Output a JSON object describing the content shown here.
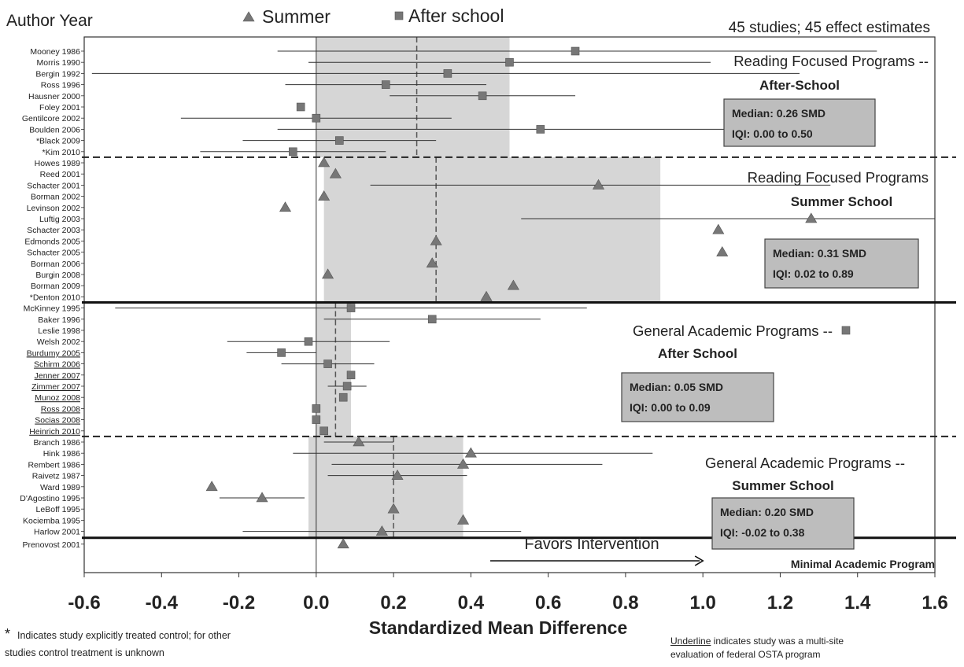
{
  "chart_data": {
    "type": "scatter",
    "subtype": "forest-plot",
    "header_left": "Author Year",
    "count_label": "45 studies; 45 effect estimates",
    "legend": [
      {
        "name": "Summer",
        "marker": "triangle"
      },
      {
        "name": "After school",
        "marker": "square"
      }
    ],
    "xlabel": "Standardized Mean Difference",
    "xlim": [
      -0.6,
      1.6
    ],
    "xticks": [
      "-0.6",
      "-0.4",
      "-0.2",
      "0.0",
      "0.2",
      "0.4",
      "0.6",
      "0.8",
      "1.0",
      "1.2",
      "1.4",
      "1.6"
    ],
    "xtick_values": [
      -0.6,
      -0.4,
      -0.2,
      0.0,
      0.2,
      0.4,
      0.6,
      0.8,
      1.0,
      1.2,
      1.4,
      1.6
    ],
    "arrow_label": "Favors Intervention",
    "arrow_range": [
      0.45,
      1.0
    ],
    "groups": [
      {
        "title_line1": "Reading Focused Programs --",
        "title_line2": "After-School",
        "median_label": "Median:  0.26 SMD",
        "iqi_label": "IQI: 0.00 to 0.50",
        "median": 0.26,
        "iqi": [
          0.0,
          0.5
        ],
        "divider": "dashed",
        "studies": [
          {
            "label": "Mooney 1986",
            "marker": "square",
            "es": 0.67,
            "ci": [
              -0.1,
              1.45
            ]
          },
          {
            "label": "Morris 1990",
            "marker": "square",
            "es": 0.5,
            "ci": [
              -0.02,
              1.02
            ]
          },
          {
            "label": "Bergin 1992",
            "marker": "square",
            "es": 0.34,
            "ci": [
              -0.58,
              1.25
            ]
          },
          {
            "label": "Ross 1996",
            "marker": "square",
            "es": 0.18,
            "ci": [
              -0.08,
              0.44
            ]
          },
          {
            "label": "Hausner 2000",
            "marker": "square",
            "es": 0.43,
            "ci": [
              0.19,
              0.67
            ]
          },
          {
            "label": "Foley 2001",
            "marker": "square",
            "es": -0.04,
            "ci": null
          },
          {
            "label": "Gentilcore 2002",
            "marker": "square",
            "es": 0.0,
            "ci": [
              -0.35,
              0.35
            ]
          },
          {
            "label": "Boulden 2006",
            "marker": "square",
            "es": 0.58,
            "ci": [
              -0.1,
              1.25
            ]
          },
          {
            "label": "*Black 2009",
            "marker": "square",
            "es": 0.06,
            "ci": [
              -0.19,
              0.31
            ]
          },
          {
            "label": "*Kim 2010",
            "marker": "square",
            "es": -0.06,
            "ci": [
              -0.3,
              0.18
            ]
          }
        ]
      },
      {
        "title_line1": "Reading Focused Programs",
        "title_line2": "Summer School",
        "median_label": "Median:  0.31 SMD",
        "iqi_label": "IQI: 0.02 to 0.89",
        "median": 0.31,
        "iqi": [
          0.02,
          0.89
        ],
        "divider": "solid",
        "studies": [
          {
            "label": "Howes 1989",
            "marker": "triangle",
            "es": 0.02,
            "ci": null
          },
          {
            "label": "Reed 2001",
            "marker": "triangle",
            "es": 0.05,
            "ci": null
          },
          {
            "label": "Schacter 2001",
            "marker": "triangle",
            "es": 0.73,
            "ci": [
              0.14,
              1.33
            ]
          },
          {
            "label": "Borman 2002",
            "marker": "triangle",
            "es": 0.02,
            "ci": null
          },
          {
            "label": "Levinson 2002",
            "marker": "triangle",
            "es": -0.08,
            "ci": null
          },
          {
            "label": "Luftig 2003",
            "marker": "triangle",
            "es": 1.28,
            "ci": [
              0.53,
              2.0
            ]
          },
          {
            "label": "Schacter 2003",
            "marker": "triangle",
            "es": 1.04,
            "ci": null
          },
          {
            "label": "Edmonds 2005",
            "marker": "triangle",
            "es": 0.31,
            "ci": null
          },
          {
            "label": "Schacter 2005",
            "marker": "triangle",
            "es": 1.05,
            "ci": null
          },
          {
            "label": "Borman 2006",
            "marker": "triangle",
            "es": 0.3,
            "ci": null
          },
          {
            "label": "Burgin 2008",
            "marker": "triangle",
            "es": 0.03,
            "ci": null
          },
          {
            "label": "Borman 2009",
            "marker": "triangle",
            "es": 0.51,
            "ci": null
          },
          {
            "label": "*Denton 2010",
            "marker": "triangle",
            "es": 0.44,
            "ci": null
          }
        ]
      },
      {
        "title_line1": "General Academic Programs --",
        "title_line2": "After School",
        "median_label": "Median: 0.05 SMD",
        "iqi_label": "IQI: 0.00 to 0.09",
        "median": 0.05,
        "iqi": [
          0.0,
          0.09
        ],
        "divider": "dashed",
        "studies": [
          {
            "label": "McKinney 1995",
            "marker": "square",
            "es": 0.09,
            "ci": [
              -0.52,
              0.7
            ]
          },
          {
            "label": "Baker 1996",
            "marker": "square",
            "es": 0.3,
            "ci": [
              0.02,
              0.58
            ]
          },
          {
            "label": "Leslie 1998",
            "marker": "square",
            "es": 1.37,
            "ci": null
          },
          {
            "label": "Welsh 2002",
            "marker": "square",
            "es": -0.02,
            "ci": [
              -0.23,
              0.19
            ]
          },
          {
            "label": "Burdumy 2005",
            "marker": "square",
            "es": -0.09,
            "ci": [
              -0.18,
              0.0
            ],
            "underline": true
          },
          {
            "label": "Schirm 2006",
            "marker": "square",
            "es": 0.03,
            "ci": [
              -0.09,
              0.15
            ],
            "underline": true
          },
          {
            "label": "Jenner 2007",
            "marker": "square",
            "es": 0.09,
            "ci": null,
            "underline": true
          },
          {
            "label": "Zimmer 2007",
            "marker": "square",
            "es": 0.08,
            "ci": [
              0.03,
              0.13
            ],
            "underline": true
          },
          {
            "label": "Munoz 2008",
            "marker": "square",
            "es": 0.07,
            "ci": null,
            "underline": true
          },
          {
            "label": "Ross 2008",
            "marker": "square",
            "es": 0.0,
            "ci": null,
            "underline": true
          },
          {
            "label": "Socias 2008",
            "marker": "square",
            "es": 0.0,
            "ci": null,
            "underline": true
          },
          {
            "label": "Heinrich 2010",
            "marker": "square",
            "es": 0.02,
            "ci": null,
            "underline": true
          }
        ]
      },
      {
        "title_line1": "General Academic Programs --",
        "title_line2": "Summer School",
        "median_label": "Median: 0.20 SMD",
        "iqi_label": "IQI: -0.02 to 0.38",
        "median": 0.2,
        "iqi": [
          -0.02,
          0.38
        ],
        "divider": "solid",
        "studies": [
          {
            "label": "Branch 1986",
            "marker": "triangle",
            "es": 0.11,
            "ci": [
              0.02,
              0.2
            ]
          },
          {
            "label": "Hink 1986",
            "marker": "triangle",
            "es": 0.4,
            "ci": [
              -0.06,
              0.87
            ]
          },
          {
            "label": "Rembert 1986",
            "marker": "triangle",
            "es": 0.38,
            "ci": [
              0.04,
              0.74
            ]
          },
          {
            "label": "Raivetz 1987",
            "marker": "triangle",
            "es": 0.21,
            "ci": [
              0.03,
              0.39
            ]
          },
          {
            "label": "Ward 1989",
            "marker": "triangle",
            "es": -0.27,
            "ci": null
          },
          {
            "label": "D'Agostino 1995",
            "marker": "triangle",
            "es": -0.14,
            "ci": [
              -0.25,
              -0.03
            ]
          },
          {
            "label": "LeBoff 1995",
            "marker": "triangle",
            "es": 0.2,
            "ci": null
          },
          {
            "label": "Kociemba 1995",
            "marker": "triangle",
            "es": 0.38,
            "ci": null
          },
          {
            "label": "Harlow 2001",
            "marker": "triangle",
            "es": 0.17,
            "ci": [
              -0.19,
              0.53
            ]
          }
        ]
      },
      {
        "title_line1": "Minimal Academic Program",
        "title_line2": "",
        "divider": "none",
        "studies": [
          {
            "label": "Prenovost 2001",
            "marker": "triangle",
            "es": 0.07,
            "ci": null
          }
        ]
      }
    ]
  },
  "footnotes": {
    "left_star": "*",
    "left_line1": "Indicates study explicitly treated control; for other",
    "left_line2": "studies control treatment is unknown",
    "right_underlined": "Underline",
    "right_line1_rest": " indicates study was a multi-site",
    "right_line2": "evaluation of federal OSTA program"
  }
}
